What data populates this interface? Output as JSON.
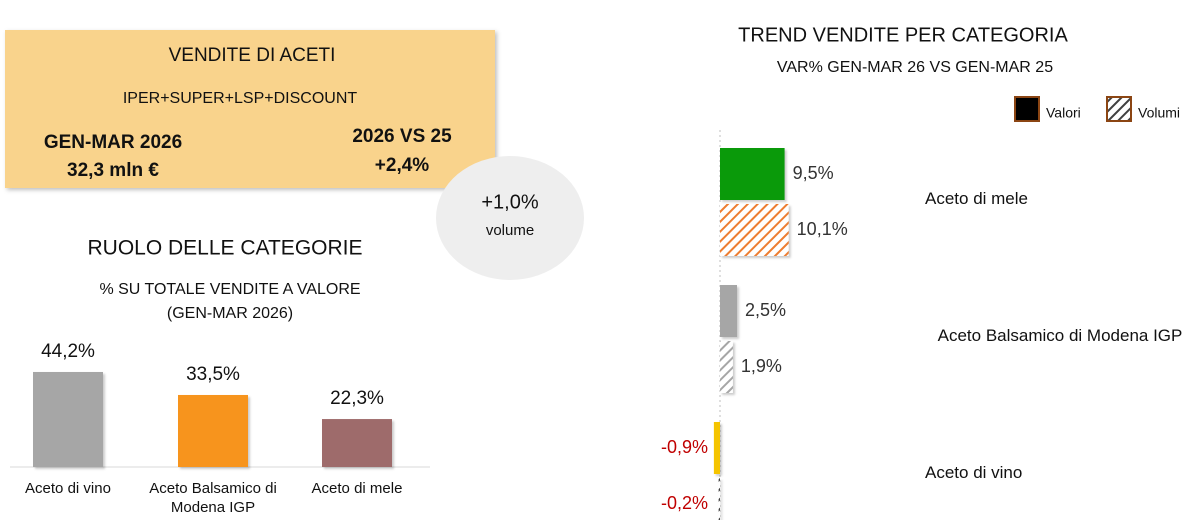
{
  "summary": {
    "title": "VENDITE DI ACETI",
    "channels": "IPER+SUPER+LSP+DISCOUNT",
    "period_label": "GEN-MAR 2026",
    "period_value": "32,3 mln €",
    "change_label": "2026 VS 25",
    "change_value": "+2,4%"
  },
  "volume_badge": {
    "value": "+1,0%",
    "label": "volume"
  },
  "chart_data": [
    {
      "type": "bar",
      "title": "RUOLO DELLE CATEGORIE",
      "subtitle": "% SU TOTALE VENDITE A VALORE (GEN-MAR 2026)",
      "categories": [
        "Aceto di vino",
        "Aceto Balsamico di Modena IGP",
        "Aceto di mele"
      ],
      "values": [
        44.2,
        33.5,
        22.3
      ],
      "value_labels": [
        "44,2%",
        "33,5%",
        "22,3%"
      ],
      "colors": [
        "#a6a6a6",
        "#f7941d",
        "#9e6b6b"
      ]
    },
    {
      "type": "hbar",
      "title": "TREND VENDITE PER CATEGORIA",
      "subtitle": "VAR% GEN-MAR 26 VS GEN-MAR 25",
      "categories": [
        "Aceto di mele",
        "Aceto Balsamico di Modena IGP",
        "Aceto di vino"
      ],
      "series": [
        {
          "name": "Valori",
          "color": "#000000",
          "hatched": false,
          "colors": [
            "#0a9a0a",
            "#a6a6a6",
            "#f5c400"
          ],
          "values": [
            9.5,
            2.5,
            -0.9
          ],
          "value_labels": [
            "9,5%",
            "2,5%",
            "-0,9%"
          ]
        },
        {
          "name": "Volumi",
          "color": "#404040",
          "hatched": true,
          "colors": [
            "#ed7d31",
            "#a6a6a6",
            "#404040"
          ],
          "values": [
            10.1,
            1.9,
            -0.2
          ],
          "value_labels": [
            "10,1%",
            "1,9%",
            "-0,2%"
          ]
        }
      ],
      "legend": "top-right"
    }
  ]
}
